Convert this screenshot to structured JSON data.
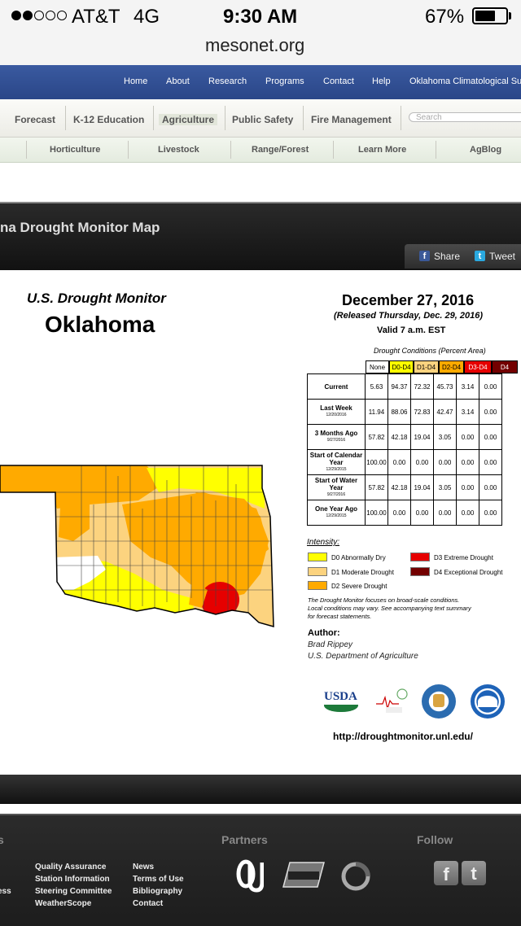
{
  "status": {
    "carrier": "AT&T",
    "network": "4G",
    "time": "9:30 AM",
    "battery": "67%",
    "battery_level": 0.67,
    "signal_bars": 2
  },
  "url": "mesonet.org",
  "top_nav": [
    "Home",
    "About",
    "Research",
    "Programs",
    "Contact",
    "Help",
    "Oklahoma Climatological Su"
  ],
  "main_nav": [
    "Forecast",
    "K-12 Education",
    "Agriculture",
    "Public Safety",
    "Fire Management"
  ],
  "search_placeholder": "Search",
  "sub_nav": [
    "Horticulture",
    "Livestock",
    "Range/Forest",
    "Learn More",
    "AgBlog"
  ],
  "page_title": "na Drought Monitor Map",
  "share": {
    "share": "Share",
    "tweet": "Tweet"
  },
  "map": {
    "us_dm": "U.S. Drought Monitor",
    "state": "Oklahoma",
    "date": "December 27, 2016",
    "released": "(Released Thursday, Dec. 29, 2016)",
    "valid": "Valid 7 a.m. EST",
    "table_caption": "Drought Conditions (Percent Area)",
    "columns": [
      "None",
      "D0-D4",
      "D1-D4",
      "D2-D4",
      "D3-D4",
      "D4"
    ],
    "column_colors": [
      "#ffffff",
      "#ffff00",
      "#fcd37f",
      "#ffaa00",
      "#e60000",
      "#730000"
    ],
    "rows": [
      {
        "label": "Current",
        "sub": "",
        "values": [
          "5.63",
          "94.37",
          "72.32",
          "45.73",
          "3.14",
          "0.00"
        ]
      },
      {
        "label": "Last Week",
        "sub": "12/20/2016",
        "values": [
          "11.94",
          "88.06",
          "72.83",
          "42.47",
          "3.14",
          "0.00"
        ]
      },
      {
        "label": "3 Months Ago",
        "sub": "9/27/2016",
        "values": [
          "57.82",
          "42.18",
          "19.04",
          "3.05",
          "0.00",
          "0.00"
        ]
      },
      {
        "label": "Start of Calendar Year",
        "sub": "12/29/2015",
        "values": [
          "100.00",
          "0.00",
          "0.00",
          "0.00",
          "0.00",
          "0.00"
        ]
      },
      {
        "label": "Start of Water Year",
        "sub": "9/27/2016",
        "values": [
          "57.82",
          "42.18",
          "19.04",
          "3.05",
          "0.00",
          "0.00"
        ]
      },
      {
        "label": "One Year Ago",
        "sub": "12/29/2015",
        "values": [
          "100.00",
          "0.00",
          "0.00",
          "0.00",
          "0.00",
          "0.00"
        ]
      }
    ],
    "intensity_label": "Intensity:",
    "legend": [
      {
        "code": "D0 Abnormally Dry",
        "color": "#ffff00"
      },
      {
        "code": "D1 Moderate Drought",
        "color": "#fcd37f"
      },
      {
        "code": "D2 Severe Drought",
        "color": "#ffaa00"
      },
      {
        "code": "D3 Extreme Drought",
        "color": "#e60000"
      },
      {
        "code": "D4 Exceptional Drought",
        "color": "#730000"
      }
    ],
    "note1": "The Drought Monitor focuses on broad-scale conditions.",
    "note2": "Local conditions may vary. See accompanying text summary",
    "note3": "for forecast statements.",
    "author_label": "Author:",
    "author_name": "Brad Rippey",
    "author_org": "U.S. Department of Agriculture",
    "usda": "USDA",
    "url": "http://droughtmonitor.unl.edu/"
  },
  "footer": {
    "partners": "Partners",
    "follow": "Follow",
    "links_col1": [
      "Quality Assurance",
      "Station Information",
      "Steering Committee",
      "WeatherScope"
    ],
    "links_col2": [
      "News",
      "Terms of Use",
      "Bibliography",
      "Contact"
    ],
    "partial_left": "ess"
  }
}
